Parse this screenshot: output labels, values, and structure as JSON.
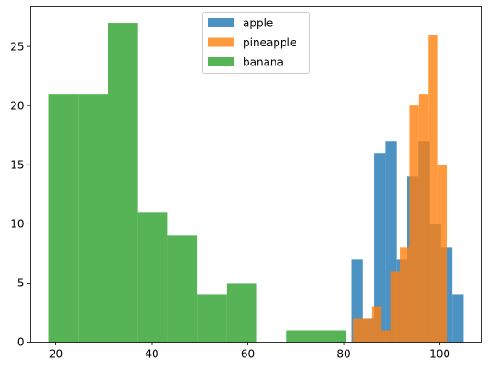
{
  "chart_data": {
    "type": "histogram",
    "title": "",
    "xlabel": "",
    "ylabel": "",
    "xlim": [
      14.7,
      108.7
    ],
    "ylim": [
      0,
      28.35
    ],
    "x_ticks": [
      20,
      40,
      60,
      80,
      100
    ],
    "y_ticks": [
      0,
      5,
      10,
      15,
      20,
      25
    ],
    "grid": false,
    "legend": "upper-center",
    "series": [
      {
        "name": "apple",
        "color": "#1f77b4",
        "alpha": 0.8,
        "bin_edges": [
          81.6,
          83.93,
          86.26,
          88.59,
          90.92,
          93.25,
          95.58,
          97.91,
          100.24,
          102.57,
          104.9
        ],
        "counts": [
          7,
          2,
          16,
          17,
          7,
          14,
          17,
          10,
          8,
          4
        ]
      },
      {
        "name": "pineapple",
        "color": "#ff7f0e",
        "alpha": 0.8,
        "bin_edges": [
          81.9,
          83.87,
          85.84,
          87.81,
          89.78,
          91.75,
          93.72,
          95.69,
          97.66,
          99.63,
          101.6
        ],
        "counts": [
          2,
          2,
          3,
          1,
          6,
          8,
          20,
          21,
          26,
          15
        ]
      },
      {
        "name": "banana",
        "color": "#2ca02c",
        "alpha": 0.8,
        "bin_edges": [
          18.5,
          24.7,
          30.9,
          37.1,
          43.3,
          49.5,
          55.7,
          61.9,
          68.1,
          74.3,
          80.5
        ],
        "counts": [
          21,
          21,
          27,
          11,
          9,
          4,
          5,
          0,
          1,
          1
        ]
      }
    ]
  }
}
